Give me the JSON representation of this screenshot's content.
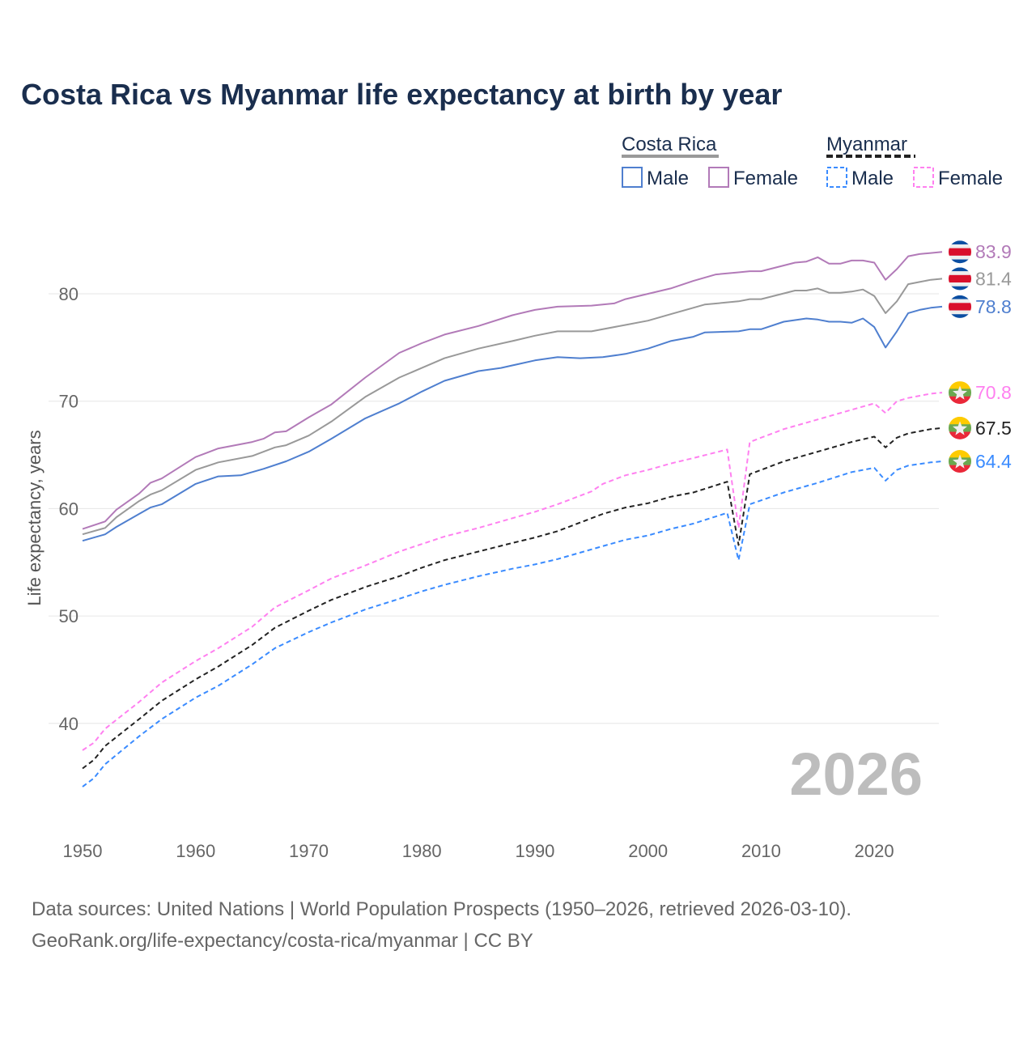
{
  "chart_data": {
    "type": "line",
    "title": "Costa Rica vs Myanmar life expectancy at birth by year",
    "xlabel": "",
    "ylabel": "Life expectancy, years",
    "xlim": [
      1950,
      2026
    ],
    "ylim": [
      32,
      87
    ],
    "x_ticks": [
      "1950",
      "1960",
      "1970",
      "1980",
      "1990",
      "2000",
      "2010",
      "2020"
    ],
    "y_ticks": [
      "40",
      "50",
      "60",
      "70",
      "80"
    ],
    "grid": true,
    "year_label": "2026",
    "legend": {
      "placement": "top-right",
      "groups": [
        {
          "title": "Costa Rica",
          "style": "solid",
          "items": [
            "Male",
            "Female"
          ]
        },
        {
          "title": "Myanmar",
          "style": "dashed",
          "items": [
            "Male",
            "Female"
          ]
        }
      ]
    },
    "series": [
      {
        "name": "Costa Rica Female",
        "country": "costa-rica",
        "color": "#b27ab8",
        "dashed": false,
        "end_label": "83.9",
        "points": [
          [
            1950,
            58.1
          ],
          [
            1952,
            58.8
          ],
          [
            1953,
            59.9
          ],
          [
            1955,
            61.4
          ],
          [
            1956,
            62.4
          ],
          [
            1957,
            62.8
          ],
          [
            1960,
            64.8
          ],
          [
            1962,
            65.6
          ],
          [
            1965,
            66.2
          ],
          [
            1966,
            66.5
          ],
          [
            1967,
            67.1
          ],
          [
            1968,
            67.2
          ],
          [
            1970,
            68.5
          ],
          [
            1972,
            69.7
          ],
          [
            1975,
            72.2
          ],
          [
            1978,
            74.5
          ],
          [
            1980,
            75.4
          ],
          [
            1982,
            76.2
          ],
          [
            1985,
            77.0
          ],
          [
            1988,
            78.0
          ],
          [
            1990,
            78.5
          ],
          [
            1992,
            78.8
          ],
          [
            1995,
            78.9
          ],
          [
            1997,
            79.1
          ],
          [
            1998,
            79.5
          ],
          [
            2000,
            80.0
          ],
          [
            2002,
            80.5
          ],
          [
            2004,
            81.2
          ],
          [
            2006,
            81.8
          ],
          [
            2008,
            82.0
          ],
          [
            2009,
            82.1
          ],
          [
            2010,
            82.1
          ],
          [
            2013,
            82.9
          ],
          [
            2014,
            83.0
          ],
          [
            2015,
            83.4
          ],
          [
            2016,
            82.8
          ],
          [
            2017,
            82.8
          ],
          [
            2018,
            83.1
          ],
          [
            2019,
            83.1
          ],
          [
            2020,
            82.9
          ],
          [
            2021,
            81.3
          ],
          [
            2022,
            82.3
          ],
          [
            2023,
            83.5
          ],
          [
            2024,
            83.7
          ],
          [
            2025,
            83.8
          ],
          [
            2026,
            83.9
          ]
        ]
      },
      {
        "name": "Costa Rica Total",
        "country": "costa-rica",
        "color": "#999999",
        "dashed": false,
        "end_label": "81.4",
        "points": [
          [
            1950,
            57.6
          ],
          [
            1952,
            58.2
          ],
          [
            1953,
            59.2
          ],
          [
            1955,
            60.7
          ],
          [
            1956,
            61.3
          ],
          [
            1957,
            61.7
          ],
          [
            1960,
            63.6
          ],
          [
            1962,
            64.3
          ],
          [
            1965,
            64.9
          ],
          [
            1967,
            65.7
          ],
          [
            1968,
            65.9
          ],
          [
            1970,
            66.8
          ],
          [
            1972,
            68.1
          ],
          [
            1975,
            70.4
          ],
          [
            1978,
            72.2
          ],
          [
            1980,
            73.1
          ],
          [
            1982,
            74.0
          ],
          [
            1985,
            74.9
          ],
          [
            1988,
            75.6
          ],
          [
            1990,
            76.1
          ],
          [
            1992,
            76.5
          ],
          [
            1995,
            76.5
          ],
          [
            1998,
            77.1
          ],
          [
            2000,
            77.5
          ],
          [
            2002,
            78.1
          ],
          [
            2004,
            78.7
          ],
          [
            2005,
            79.0
          ],
          [
            2008,
            79.3
          ],
          [
            2009,
            79.5
          ],
          [
            2010,
            79.5
          ],
          [
            2013,
            80.3
          ],
          [
            2014,
            80.3
          ],
          [
            2015,
            80.5
          ],
          [
            2016,
            80.1
          ],
          [
            2017,
            80.1
          ],
          [
            2018,
            80.2
          ],
          [
            2019,
            80.4
          ],
          [
            2020,
            79.8
          ],
          [
            2021,
            78.2
          ],
          [
            2022,
            79.3
          ],
          [
            2023,
            80.9
          ],
          [
            2024,
            81.1
          ],
          [
            2025,
            81.3
          ],
          [
            2026,
            81.4
          ]
        ]
      },
      {
        "name": "Costa Rica Male",
        "country": "costa-rica",
        "color": "#4f7fcf",
        "dashed": false,
        "end_label": "78.8",
        "points": [
          [
            1950,
            57.0
          ],
          [
            1952,
            57.6
          ],
          [
            1953,
            58.3
          ],
          [
            1955,
            59.5
          ],
          [
            1956,
            60.1
          ],
          [
            1957,
            60.4
          ],
          [
            1960,
            62.3
          ],
          [
            1962,
            63.0
          ],
          [
            1964,
            63.1
          ],
          [
            1966,
            63.7
          ],
          [
            1968,
            64.4
          ],
          [
            1970,
            65.3
          ],
          [
            1972,
            66.5
          ],
          [
            1975,
            68.4
          ],
          [
            1978,
            69.8
          ],
          [
            1980,
            70.9
          ],
          [
            1982,
            71.9
          ],
          [
            1985,
            72.8
          ],
          [
            1987,
            73.1
          ],
          [
            1990,
            73.8
          ],
          [
            1992,
            74.1
          ],
          [
            1994,
            74.0
          ],
          [
            1996,
            74.1
          ],
          [
            1998,
            74.4
          ],
          [
            2000,
            74.9
          ],
          [
            2002,
            75.6
          ],
          [
            2004,
            76.0
          ],
          [
            2005,
            76.4
          ],
          [
            2008,
            76.5
          ],
          [
            2009,
            76.7
          ],
          [
            2010,
            76.7
          ],
          [
            2012,
            77.4
          ],
          [
            2014,
            77.7
          ],
          [
            2015,
            77.6
          ],
          [
            2016,
            77.4
          ],
          [
            2017,
            77.4
          ],
          [
            2018,
            77.3
          ],
          [
            2019,
            77.7
          ],
          [
            2020,
            76.9
          ],
          [
            2021,
            75.0
          ],
          [
            2022,
            76.5
          ],
          [
            2023,
            78.2
          ],
          [
            2024,
            78.5
          ],
          [
            2025,
            78.7
          ],
          [
            2026,
            78.8
          ]
        ]
      },
      {
        "name": "Myanmar Female",
        "country": "myanmar",
        "color": "#ff80f0",
        "dashed": true,
        "end_label": "70.8",
        "points": [
          [
            1950,
            37.5
          ],
          [
            1951,
            38.2
          ],
          [
            1952,
            39.5
          ],
          [
            1955,
            42.0
          ],
          [
            1957,
            43.8
          ],
          [
            1960,
            45.8
          ],
          [
            1962,
            47.0
          ],
          [
            1965,
            49.0
          ],
          [
            1967,
            50.8
          ],
          [
            1970,
            52.4
          ],
          [
            1972,
            53.5
          ],
          [
            1975,
            54.7
          ],
          [
            1978,
            56.0
          ],
          [
            1980,
            56.7
          ],
          [
            1982,
            57.4
          ],
          [
            1985,
            58.2
          ],
          [
            1988,
            59.1
          ],
          [
            1990,
            59.7
          ],
          [
            1992,
            60.4
          ],
          [
            1995,
            61.6
          ],
          [
            1996,
            62.3
          ],
          [
            1998,
            63.1
          ],
          [
            2000,
            63.6
          ],
          [
            2002,
            64.2
          ],
          [
            2004,
            64.7
          ],
          [
            2007,
            65.5
          ],
          [
            2008,
            58.2
          ],
          [
            2009,
            66.2
          ],
          [
            2012,
            67.4
          ],
          [
            2015,
            68.3
          ],
          [
            2018,
            69.2
          ],
          [
            2020,
            69.8
          ],
          [
            2021,
            68.9
          ],
          [
            2022,
            70.0
          ],
          [
            2023,
            70.3
          ],
          [
            2025,
            70.7
          ],
          [
            2026,
            70.8
          ]
        ]
      },
      {
        "name": "Myanmar Total",
        "country": "myanmar",
        "color": "#222222",
        "dashed": true,
        "end_label": "67.5",
        "points": [
          [
            1950,
            35.8
          ],
          [
            1951,
            36.6
          ],
          [
            1952,
            37.9
          ],
          [
            1955,
            40.4
          ],
          [
            1957,
            42.1
          ],
          [
            1960,
            44.1
          ],
          [
            1962,
            45.3
          ],
          [
            1965,
            47.3
          ],
          [
            1967,
            48.9
          ],
          [
            1970,
            50.5
          ],
          [
            1972,
            51.5
          ],
          [
            1975,
            52.7
          ],
          [
            1978,
            53.7
          ],
          [
            1980,
            54.5
          ],
          [
            1982,
            55.2
          ],
          [
            1985,
            56.0
          ],
          [
            1988,
            56.8
          ],
          [
            1990,
            57.3
          ],
          [
            1992,
            57.9
          ],
          [
            1995,
            59.1
          ],
          [
            1996,
            59.5
          ],
          [
            1998,
            60.1
          ],
          [
            2000,
            60.5
          ],
          [
            2002,
            61.1
          ],
          [
            2004,
            61.5
          ],
          [
            2007,
            62.5
          ],
          [
            2008,
            56.6
          ],
          [
            2009,
            63.2
          ],
          [
            2012,
            64.4
          ],
          [
            2015,
            65.3
          ],
          [
            2018,
            66.2
          ],
          [
            2020,
            66.7
          ],
          [
            2021,
            65.7
          ],
          [
            2022,
            66.6
          ],
          [
            2023,
            67.0
          ],
          [
            2025,
            67.4
          ],
          [
            2026,
            67.5
          ]
        ]
      },
      {
        "name": "Myanmar Male",
        "country": "myanmar",
        "color": "#3a8bff",
        "dashed": true,
        "end_label": "64.4",
        "points": [
          [
            1950,
            34.1
          ],
          [
            1951,
            34.9
          ],
          [
            1952,
            36.2
          ],
          [
            1955,
            38.8
          ],
          [
            1957,
            40.4
          ],
          [
            1960,
            42.4
          ],
          [
            1962,
            43.5
          ],
          [
            1965,
            45.5
          ],
          [
            1967,
            47.0
          ],
          [
            1970,
            48.5
          ],
          [
            1972,
            49.4
          ],
          [
            1975,
            50.6
          ],
          [
            1978,
            51.6
          ],
          [
            1980,
            52.3
          ],
          [
            1982,
            52.9
          ],
          [
            1985,
            53.7
          ],
          [
            1988,
            54.4
          ],
          [
            1990,
            54.8
          ],
          [
            1992,
            55.3
          ],
          [
            1995,
            56.2
          ],
          [
            1996,
            56.5
          ],
          [
            1998,
            57.1
          ],
          [
            2000,
            57.5
          ],
          [
            2002,
            58.1
          ],
          [
            2004,
            58.6
          ],
          [
            2007,
            59.6
          ],
          [
            2008,
            55.2
          ],
          [
            2009,
            60.4
          ],
          [
            2012,
            61.5
          ],
          [
            2015,
            62.4
          ],
          [
            2018,
            63.4
          ],
          [
            2020,
            63.8
          ],
          [
            2021,
            62.6
          ],
          [
            2022,
            63.6
          ],
          [
            2023,
            64.0
          ],
          [
            2025,
            64.3
          ],
          [
            2026,
            64.4
          ]
        ]
      }
    ]
  },
  "footer": {
    "line1": "Data sources: United Nations | World Population Prospects (1950–2026, retrieved 2026-03-10).",
    "line2": "GeoRank.org/life-expectancy/costa-rica/myanmar | CC BY"
  }
}
